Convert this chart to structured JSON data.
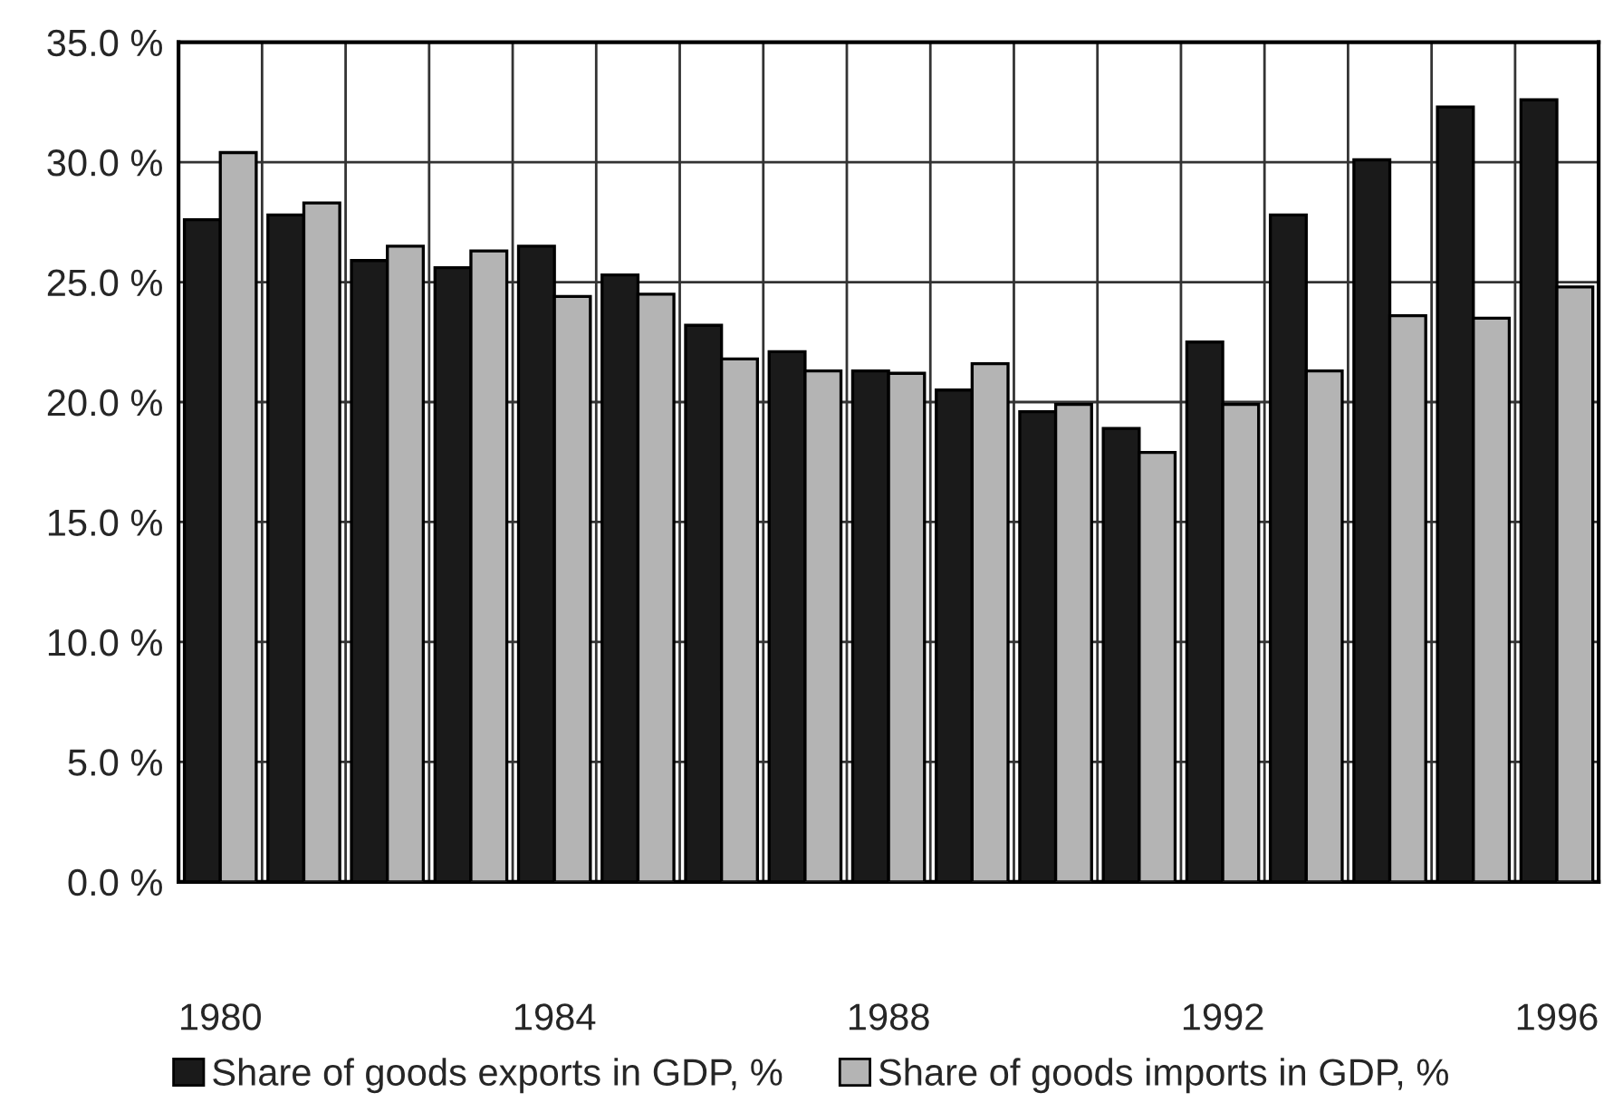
{
  "chart_data": {
    "type": "bar",
    "categories": [
      "1980",
      null,
      null,
      null,
      "1984",
      null,
      null,
      null,
      "1988",
      null,
      null,
      null,
      "1992",
      null,
      null,
      null,
      "1996"
    ],
    "series": [
      {
        "name": "Share of goods exports in GDP, %",
        "color": "#1a1a1a",
        "values": [
          27.6,
          27.8,
          25.9,
          25.6,
          26.5,
          25.3,
          23.2,
          22.1,
          21.3,
          20.5,
          19.6,
          18.9,
          22.5,
          27.8,
          30.1,
          32.3,
          32.6
        ]
      },
      {
        "name": "Share of goods imports in GDP, %",
        "color": "#b4b4b4",
        "values": [
          30.4,
          28.3,
          26.5,
          26.3,
          24.4,
          24.5,
          21.8,
          21.3,
          21.2,
          21.6,
          19.9,
          17.9,
          19.9,
          21.3,
          23.6,
          23.5,
          24.8
        ]
      }
    ],
    "ylim": [
      0,
      35
    ],
    "yticks": [
      {
        "value": 0,
        "label": "0.0 %"
      },
      {
        "value": 5,
        "label": "5.0 %"
      },
      {
        "value": 10,
        "label": "10.0 %"
      },
      {
        "value": 15,
        "label": "15.0 %"
      },
      {
        "value": 20,
        "label": "20.0 %"
      },
      {
        "value": 25,
        "label": "25.0 %"
      },
      {
        "value": 30,
        "label": "30.0 %"
      },
      {
        "value": 35,
        "label": "35.0 %"
      }
    ],
    "grid": true,
    "legend": "bottom"
  }
}
